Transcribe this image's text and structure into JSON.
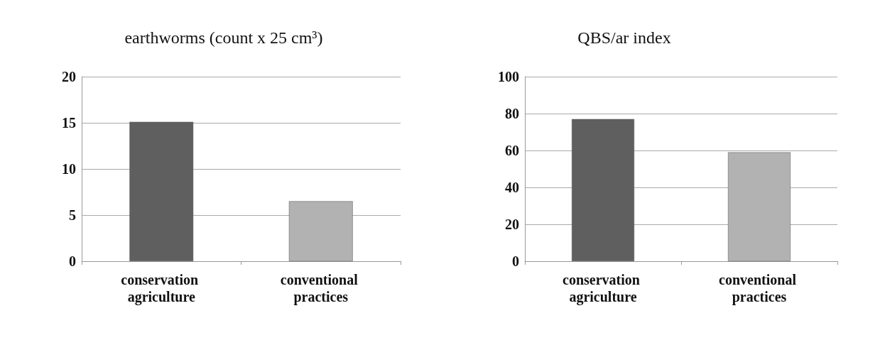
{
  "chart_data": [
    {
      "type": "bar",
      "title": "earthworms (count x 25 cm³)",
      "categories": [
        "conservation agriculture",
        "conventional practices"
      ],
      "values": [
        15.1,
        6.5
      ],
      "colors": [
        "#5f5f5f",
        "#b2b2b2"
      ],
      "ylim": [
        0,
        20
      ],
      "yticks": [
        0,
        5,
        10,
        15,
        20
      ],
      "grid": "y"
    },
    {
      "type": "bar",
      "title": "QBS/ar index",
      "categories": [
        "conservation agriculture",
        "conventional practices"
      ],
      "values": [
        77,
        59
      ],
      "colors": [
        "#5f5f5f",
        "#b2b2b2"
      ],
      "ylim": [
        0,
        100
      ],
      "yticks": [
        0,
        20,
        40,
        60,
        80,
        100
      ],
      "grid": "y"
    }
  ]
}
